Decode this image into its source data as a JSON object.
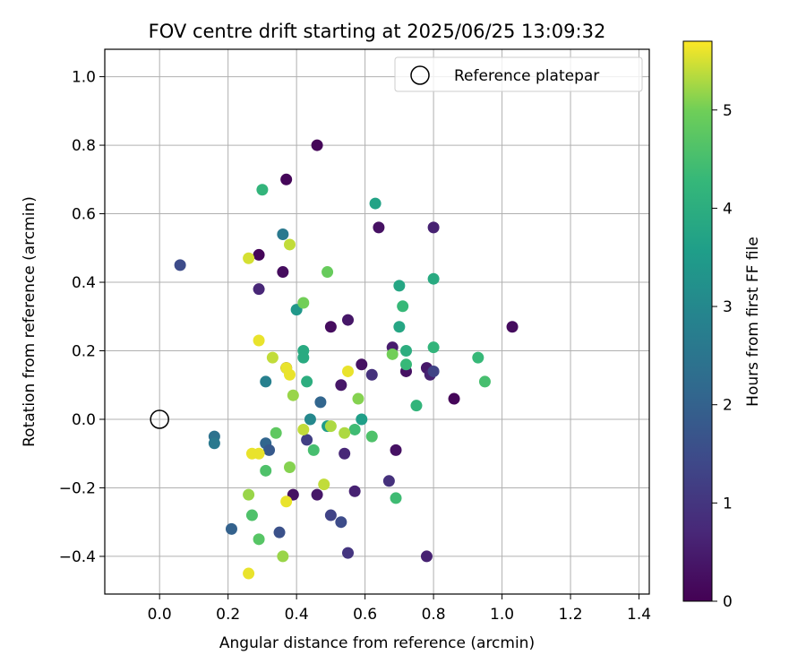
{
  "chart_data": {
    "type": "scatter",
    "title": "FOV centre drift starting at 2025/06/25 13:09:32",
    "xlabel": "Angular distance from reference (arcmin)",
    "ylabel": "Rotation from reference (arcmin)",
    "xlim": [
      -0.16,
      1.43
    ],
    "ylim": [
      -0.51,
      1.08
    ],
    "xticks": [
      "0.0",
      "0.2",
      "0.4",
      "0.6",
      "0.8",
      "1.0",
      "1.2",
      "1.4"
    ],
    "yticks": [
      "−0.4",
      "−0.2",
      "0.0",
      "0.2",
      "0.4",
      "0.6",
      "0.8",
      "1.0"
    ],
    "xtick_values": [
      0.0,
      0.2,
      0.4,
      0.6,
      0.8,
      1.0,
      1.2,
      1.4
    ],
    "ytick_values": [
      -0.4,
      -0.2,
      0.0,
      0.2,
      0.4,
      0.6,
      0.8,
      1.0
    ],
    "grid": true,
    "legend": {
      "placement": "top-right",
      "label": "Reference platepar"
    },
    "reference_point": {
      "x": 0.0,
      "y": 0.0
    },
    "colorbar": {
      "label": "Hours from first FF file",
      "min": 0,
      "max": 5.7,
      "ticks": [
        "0",
        "1",
        "2",
        "3",
        "4",
        "5"
      ],
      "tick_values": [
        0,
        1,
        2,
        3,
        4,
        5
      ],
      "colormap": "viridis"
    },
    "points": [
      {
        "x": 0.46,
        "y": 0.8,
        "h": 0.1
      },
      {
        "x": 0.37,
        "y": 0.7,
        "h": 0.1
      },
      {
        "x": 0.29,
        "y": 0.48,
        "h": 0.1
      },
      {
        "x": 0.36,
        "y": 0.43,
        "h": 0.2
      },
      {
        "x": 0.64,
        "y": 0.56,
        "h": 0.3
      },
      {
        "x": 0.8,
        "y": 0.56,
        "h": 0.6
      },
      {
        "x": 1.03,
        "y": 0.27,
        "h": 0.2
      },
      {
        "x": 0.5,
        "y": 0.27,
        "h": 0.2
      },
      {
        "x": 0.55,
        "y": 0.29,
        "h": 0.4
      },
      {
        "x": 0.59,
        "y": 0.16,
        "h": 0.3
      },
      {
        "x": 0.68,
        "y": 0.21,
        "h": 0.5
      },
      {
        "x": 0.72,
        "y": 0.14,
        "h": 0.3
      },
      {
        "x": 0.78,
        "y": 0.15,
        "h": 0.4
      },
      {
        "x": 0.79,
        "y": 0.13,
        "h": 0.6
      },
      {
        "x": 0.86,
        "y": 0.06,
        "h": 0.1
      },
      {
        "x": 0.53,
        "y": 0.1,
        "h": 0.4
      },
      {
        "x": 0.62,
        "y": 0.13,
        "h": 0.9
      },
      {
        "x": 0.29,
        "y": 0.38,
        "h": 0.7
      },
      {
        "x": 0.37,
        "y": 0.15,
        "h": 0.1
      },
      {
        "x": 0.69,
        "y": -0.09,
        "h": 0.3
      },
      {
        "x": 0.54,
        "y": -0.1,
        "h": 0.7
      },
      {
        "x": 0.57,
        "y": -0.21,
        "h": 0.6
      },
      {
        "x": 0.46,
        "y": -0.22,
        "h": 0.4
      },
      {
        "x": 0.39,
        "y": -0.22,
        "h": 0.3
      },
      {
        "x": 0.67,
        "y": -0.18,
        "h": 0.9
      },
      {
        "x": 0.78,
        "y": -0.4,
        "h": 0.6
      },
      {
        "x": 0.55,
        "y": -0.39,
        "h": 1.0
      },
      {
        "x": 0.43,
        "y": -0.06,
        "h": 1.2
      },
      {
        "x": 0.8,
        "y": 0.14,
        "h": 1.3
      },
      {
        "x": 0.06,
        "y": 0.45,
        "h": 1.5
      },
      {
        "x": 0.5,
        "y": -0.28,
        "h": 1.3
      },
      {
        "x": 0.53,
        "y": -0.3,
        "h": 1.5
      },
      {
        "x": 0.35,
        "y": -0.33,
        "h": 1.6
      },
      {
        "x": 0.21,
        "y": -0.32,
        "h": 2.0
      },
      {
        "x": 0.31,
        "y": -0.07,
        "h": 2.1
      },
      {
        "x": 0.32,
        "y": -0.09,
        "h": 1.8
      },
      {
        "x": 0.47,
        "y": 0.05,
        "h": 2.1
      },
      {
        "x": 0.16,
        "y": -0.05,
        "h": 2.4
      },
      {
        "x": 0.16,
        "y": -0.07,
        "h": 2.6
      },
      {
        "x": 0.31,
        "y": 0.11,
        "h": 2.8
      },
      {
        "x": 0.36,
        "y": 0.54,
        "h": 2.6
      },
      {
        "x": 0.4,
        "y": 0.32,
        "h": 3.4
      },
      {
        "x": 0.44,
        "y": 0.0,
        "h": 3.0
      },
      {
        "x": 0.49,
        "y": -0.02,
        "h": 3.5
      },
      {
        "x": 0.59,
        "y": -0.0,
        "h": 3.6
      },
      {
        "x": 0.63,
        "y": 0.63,
        "h": 3.7
      },
      {
        "x": 0.7,
        "y": 0.39,
        "h": 3.8
      },
      {
        "x": 0.8,
        "y": 0.41,
        "h": 3.9
      },
      {
        "x": 0.7,
        "y": 0.27,
        "h": 3.8
      },
      {
        "x": 0.72,
        "y": 0.2,
        "h": 4.0
      },
      {
        "x": 0.42,
        "y": 0.2,
        "h": 3.9
      },
      {
        "x": 0.42,
        "y": 0.18,
        "h": 3.9
      },
      {
        "x": 0.43,
        "y": 0.11,
        "h": 4.0
      },
      {
        "x": 0.3,
        "y": 0.67,
        "h": 4.2
      },
      {
        "x": 0.72,
        "y": 0.16,
        "h": 4.3
      },
      {
        "x": 0.75,
        "y": 0.04,
        "h": 4.2
      },
      {
        "x": 0.8,
        "y": 0.21,
        "h": 4.2
      },
      {
        "x": 0.71,
        "y": 0.33,
        "h": 4.3
      },
      {
        "x": 0.93,
        "y": 0.18,
        "h": 4.3
      },
      {
        "x": 0.95,
        "y": 0.11,
        "h": 4.5
      },
      {
        "x": 0.57,
        "y": -0.03,
        "h": 4.4
      },
      {
        "x": 0.62,
        "y": -0.05,
        "h": 4.6
      },
      {
        "x": 0.69,
        "y": -0.23,
        "h": 4.4
      },
      {
        "x": 0.45,
        "y": -0.09,
        "h": 4.5
      },
      {
        "x": 0.31,
        "y": -0.15,
        "h": 4.6
      },
      {
        "x": 0.27,
        "y": -0.28,
        "h": 4.6
      },
      {
        "x": 0.29,
        "y": -0.35,
        "h": 4.7
      },
      {
        "x": 0.34,
        "y": -0.04,
        "h": 4.8
      },
      {
        "x": 0.49,
        "y": 0.43,
        "h": 4.9
      },
      {
        "x": 0.42,
        "y": 0.34,
        "h": 5.0
      },
      {
        "x": 0.68,
        "y": 0.19,
        "h": 5.0
      },
      {
        "x": 0.58,
        "y": 0.06,
        "h": 5.1
      },
      {
        "x": 0.39,
        "y": 0.07,
        "h": 5.2
      },
      {
        "x": 0.38,
        "y": -0.14,
        "h": 5.1
      },
      {
        "x": 0.36,
        "y": -0.4,
        "h": 5.2
      },
      {
        "x": 0.26,
        "y": -0.22,
        "h": 5.2
      },
      {
        "x": 0.5,
        "y": -0.02,
        "h": 5.3
      },
      {
        "x": 0.54,
        "y": -0.04,
        "h": 5.3
      },
      {
        "x": 0.42,
        "y": -0.03,
        "h": 5.4
      },
      {
        "x": 0.48,
        "y": -0.19,
        "h": 5.4
      },
      {
        "x": 0.38,
        "y": 0.51,
        "h": 5.4
      },
      {
        "x": 0.33,
        "y": 0.18,
        "h": 5.4
      },
      {
        "x": 0.26,
        "y": 0.47,
        "h": 5.5
      },
      {
        "x": 0.29,
        "y": 0.23,
        "h": 5.6
      },
      {
        "x": 0.37,
        "y": 0.15,
        "h": 5.6
      },
      {
        "x": 0.38,
        "y": 0.13,
        "h": 5.6
      },
      {
        "x": 0.55,
        "y": 0.14,
        "h": 5.6
      },
      {
        "x": 0.27,
        "y": -0.1,
        "h": 5.6
      },
      {
        "x": 0.29,
        "y": -0.1,
        "h": 5.6
      },
      {
        "x": 0.37,
        "y": -0.24,
        "h": 5.6
      },
      {
        "x": 0.26,
        "y": -0.45,
        "h": 5.6
      }
    ]
  }
}
